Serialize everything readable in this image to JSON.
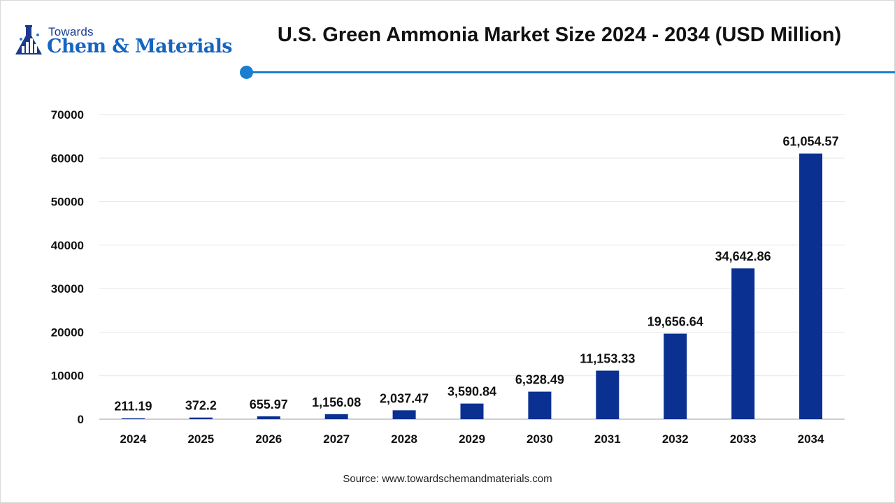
{
  "logo": {
    "top_text": "Towards",
    "main_text": "Chem & Materials",
    "icon": "flask-chart-icon"
  },
  "header": {
    "title": "U.S. Green Ammonia Market Size 2024 - 2034 (USD Million)",
    "accent_color": "#1a7fd0"
  },
  "chart_data": {
    "type": "bar",
    "title": "U.S. Green Ammonia Market Size 2024 - 2034 (USD Million)",
    "xlabel": "",
    "ylabel": "",
    "categories": [
      "2024",
      "2025",
      "2026",
      "2027",
      "2028",
      "2029",
      "2030",
      "2031",
      "2032",
      "2033",
      "2034"
    ],
    "values": [
      211.19,
      372.2,
      655.97,
      1156.08,
      2037.47,
      3590.84,
      6328.49,
      11153.33,
      19656.64,
      34642.86,
      61054.57
    ],
    "value_labels": [
      "211.19",
      "372.2",
      "655.97",
      "1,156.08",
      "2,037.47",
      "3,590.84",
      "6,328.49",
      "11,153.33",
      "19,656.64",
      "34,642.86",
      "61,054.57"
    ],
    "ylim": [
      0,
      70000
    ],
    "yticks": [
      0,
      10000,
      20000,
      30000,
      40000,
      50000,
      60000,
      70000
    ],
    "ytick_labels": [
      "0",
      "10000",
      "20000",
      "30000",
      "40000",
      "50000",
      "60000",
      "70000"
    ],
    "grid": true,
    "legend": "none",
    "bar_color": "#0a3191"
  },
  "footer": {
    "source": "Source: www.towardschemandmaterials.com"
  }
}
